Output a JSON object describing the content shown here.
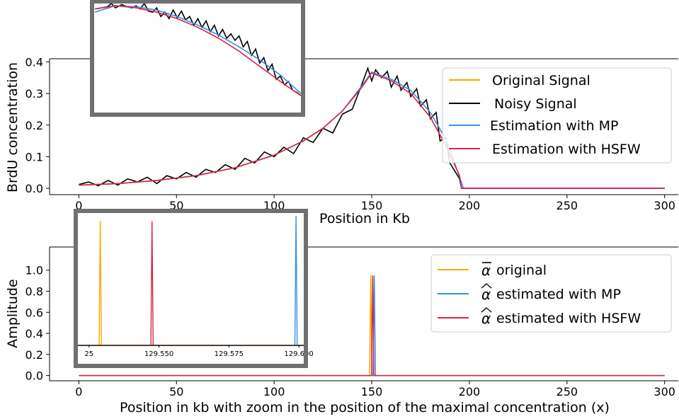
{
  "chart_data": [
    {
      "type": "line",
      "ylabel": "BrdU concentration",
      "xlabel": "Position in Kb",
      "xlim": [
        -15,
        307
      ],
      "ylim": [
        -0.02,
        0.41
      ],
      "xticks": [
        "0",
        "50",
        "100",
        "150",
        "200",
        "250",
        "300"
      ],
      "xtick_values": [
        0,
        50,
        100,
        150,
        200,
        250,
        300
      ],
      "yticks": [
        "0.0",
        "0.1",
        "0.2",
        "0.3",
        "0.4"
      ],
      "ytick_values": [
        0,
        0.1,
        0.2,
        0.3,
        0.4
      ],
      "legend_position": "right",
      "series": [
        {
          "name": "Original Signal",
          "color": "#ffa500",
          "x": [
            0,
            20,
            40,
            60,
            80,
            100,
            115,
            125,
            135,
            145,
            150,
            160,
            170,
            180,
            188,
            195,
            196,
            300
          ],
          "y": [
            0.01,
            0.015,
            0.025,
            0.04,
            0.065,
            0.105,
            0.15,
            0.19,
            0.245,
            0.32,
            0.365,
            0.34,
            0.3,
            0.225,
            0.135,
            0.04,
            0.0,
            0.0
          ]
        },
        {
          "name": "Noisy Signal",
          "color": "#000000",
          "x": [
            0,
            5,
            10,
            15,
            20,
            25,
            30,
            35,
            40,
            45,
            50,
            55,
            60,
            65,
            70,
            75,
            80,
            85,
            90,
            95,
            100,
            105,
            110,
            115,
            120,
            125,
            130,
            135,
            140,
            145,
            148,
            150,
            152,
            155,
            158,
            160,
            163,
            165,
            168,
            170,
            173,
            175,
            178,
            180,
            183,
            185,
            188,
            190,
            193,
            195,
            196,
            300
          ],
          "y": [
            0.012,
            0.02,
            0.008,
            0.025,
            0.01,
            0.03,
            0.02,
            0.035,
            0.015,
            0.04,
            0.03,
            0.05,
            0.035,
            0.06,
            0.05,
            0.075,
            0.06,
            0.095,
            0.08,
            0.115,
            0.1,
            0.13,
            0.11,
            0.16,
            0.145,
            0.19,
            0.175,
            0.235,
            0.25,
            0.33,
            0.38,
            0.34,
            0.375,
            0.35,
            0.37,
            0.32,
            0.355,
            0.31,
            0.335,
            0.29,
            0.315,
            0.26,
            0.28,
            0.22,
            0.24,
            0.15,
            0.16,
            0.08,
            0.05,
            0.03,
            0.0,
            0.0
          ]
        },
        {
          "name": "Estimation with MP",
          "color": "#3a8ee6",
          "x": [
            0,
            20,
            40,
            60,
            80,
            100,
            115,
            125,
            135,
            145,
            150,
            160,
            170,
            180,
            188,
            193,
            197,
            300
          ],
          "y": [
            0.01,
            0.015,
            0.025,
            0.04,
            0.065,
            0.105,
            0.15,
            0.19,
            0.245,
            0.325,
            0.368,
            0.345,
            0.31,
            0.24,
            0.155,
            0.07,
            0.0,
            0.0
          ]
        },
        {
          "name": "Estimation with HSFW",
          "color": "#d62747",
          "x": [
            0,
            20,
            40,
            60,
            80,
            100,
            115,
            125,
            135,
            145,
            150,
            160,
            170,
            180,
            188,
            195,
            196,
            300
          ],
          "y": [
            0.01,
            0.015,
            0.025,
            0.04,
            0.065,
            0.105,
            0.15,
            0.19,
            0.245,
            0.32,
            0.365,
            0.34,
            0.3,
            0.225,
            0.135,
            0.04,
            0.0,
            0.0
          ]
        }
      ]
    },
    {
      "type": "line",
      "ylabel": "Amplitude",
      "xlabel": "Position in kb with zoom in the position of the maximal concentration (x)",
      "xlim": [
        -15,
        307
      ],
      "ylim": [
        -0.05,
        1.22
      ],
      "xticks": [
        "0",
        "50",
        "100",
        "150",
        "200",
        "250",
        "300"
      ],
      "xtick_values": [
        0,
        50,
        100,
        150,
        200,
        250,
        300
      ],
      "yticks": [
        "0.0",
        "0.2",
        "0.4",
        "0.6",
        "0.8",
        "1.0"
      ],
      "ytick_values": [
        0,
        0.2,
        0.4,
        0.6,
        0.8,
        1.0
      ],
      "legend_position": "right",
      "series": [
        {
          "name": "original",
          "color": "#ffa500",
          "spike_x": 149.5,
          "spike_y": 0.95
        },
        {
          "name": "estimated with MP",
          "color": "#3a8ee6",
          "spike_x": 151.3,
          "spike_y": 0.95
        },
        {
          "name": "estimated with HSFW",
          "color": "#d62747",
          "spike_x": 150.5,
          "spike_y": 0.95
        }
      ]
    }
  ],
  "inset_top": {
    "series": [
      {
        "name": "Noisy Signal",
        "color": "#000000",
        "x": [
          0,
          3,
          6,
          8,
          10,
          13,
          16,
          18,
          20,
          22,
          24,
          26,
          28,
          30,
          32,
          34,
          36,
          38,
          40,
          42,
          44,
          46,
          48,
          50,
          52,
          54,
          56,
          58,
          60,
          62,
          64,
          66,
          68,
          70,
          72,
          74,
          76,
          78,
          80,
          82,
          84,
          86,
          88,
          90,
          92,
          94,
          96,
          98,
          100
        ],
        "y": [
          0.95,
          0.96,
          0.97,
          1.0,
          0.96,
          0.99,
          0.97,
          0.96,
          0.98,
          0.95,
          1.0,
          0.93,
          0.92,
          0.96,
          0.88,
          0.92,
          0.86,
          0.94,
          0.87,
          0.93,
          0.85,
          0.88,
          0.8,
          0.86,
          0.78,
          0.84,
          0.74,
          0.8,
          0.7,
          0.76,
          0.68,
          0.72,
          0.66,
          0.7,
          0.6,
          0.65,
          0.52,
          0.58,
          0.45,
          0.5,
          0.38,
          0.44,
          0.3,
          0.33,
          0.25,
          0.28,
          0.2,
          0.18,
          0.15
        ]
      },
      {
        "name": "Estimation with MP",
        "color": "#3a8ee6",
        "x": [
          0,
          10,
          20,
          30,
          40,
          50,
          60,
          70,
          80,
          90,
          100
        ],
        "y": [
          0.92,
          0.98,
          0.97,
          0.94,
          0.88,
          0.8,
          0.71,
          0.6,
          0.48,
          0.34,
          0.17
        ]
      },
      {
        "name": "Estimation with HSFW",
        "color": "#d62747",
        "x": [
          0,
          10,
          20,
          30,
          40,
          50,
          60,
          70,
          80,
          90,
          100
        ],
        "y": [
          0.95,
          0.98,
          0.96,
          0.92,
          0.86,
          0.78,
          0.68,
          0.56,
          0.42,
          0.28,
          0.15
        ]
      }
    ]
  },
  "inset_bottom": {
    "xlim": [
      129.521,
      129.602
    ],
    "xticks": [
      "25",
      "129.550",
      "129.575",
      "129.600"
    ],
    "xtick_values": [
      129.525,
      129.55,
      129.575,
      129.6
    ],
    "spikes": [
      {
        "name": "original",
        "color": "#ffa500",
        "x": 129.529,
        "height": 0.96
      },
      {
        "name": "estimated with HSFW",
        "color": "#d62747",
        "x": 129.5475,
        "height": 0.96
      },
      {
        "name": "estimated with MP",
        "color": "#3a8ee6",
        "x": 129.599,
        "height": 1.0
      }
    ]
  },
  "legend_top": {
    "items": [
      {
        "label": "Original Signal",
        "color": "#ffa500"
      },
      {
        "label": " Noisy Signal",
        "color": "#000000"
      },
      {
        "label": "Estimation with MP",
        "color": "#3a8ee6"
      },
      {
        "label": "Estimation with HSFW",
        "color": "#d62747"
      }
    ]
  },
  "legend_bottom": {
    "symbol_original": "α",
    "symbol_estimated": "α",
    "items": [
      {
        "label": "original",
        "color": "#ffa500",
        "accent": "bar"
      },
      {
        "label": "estimated with MP",
        "color": "#3a8ee6",
        "accent": "hat"
      },
      {
        "label": "estimated with HSFW",
        "color": "#d62747",
        "accent": "hat"
      }
    ]
  }
}
